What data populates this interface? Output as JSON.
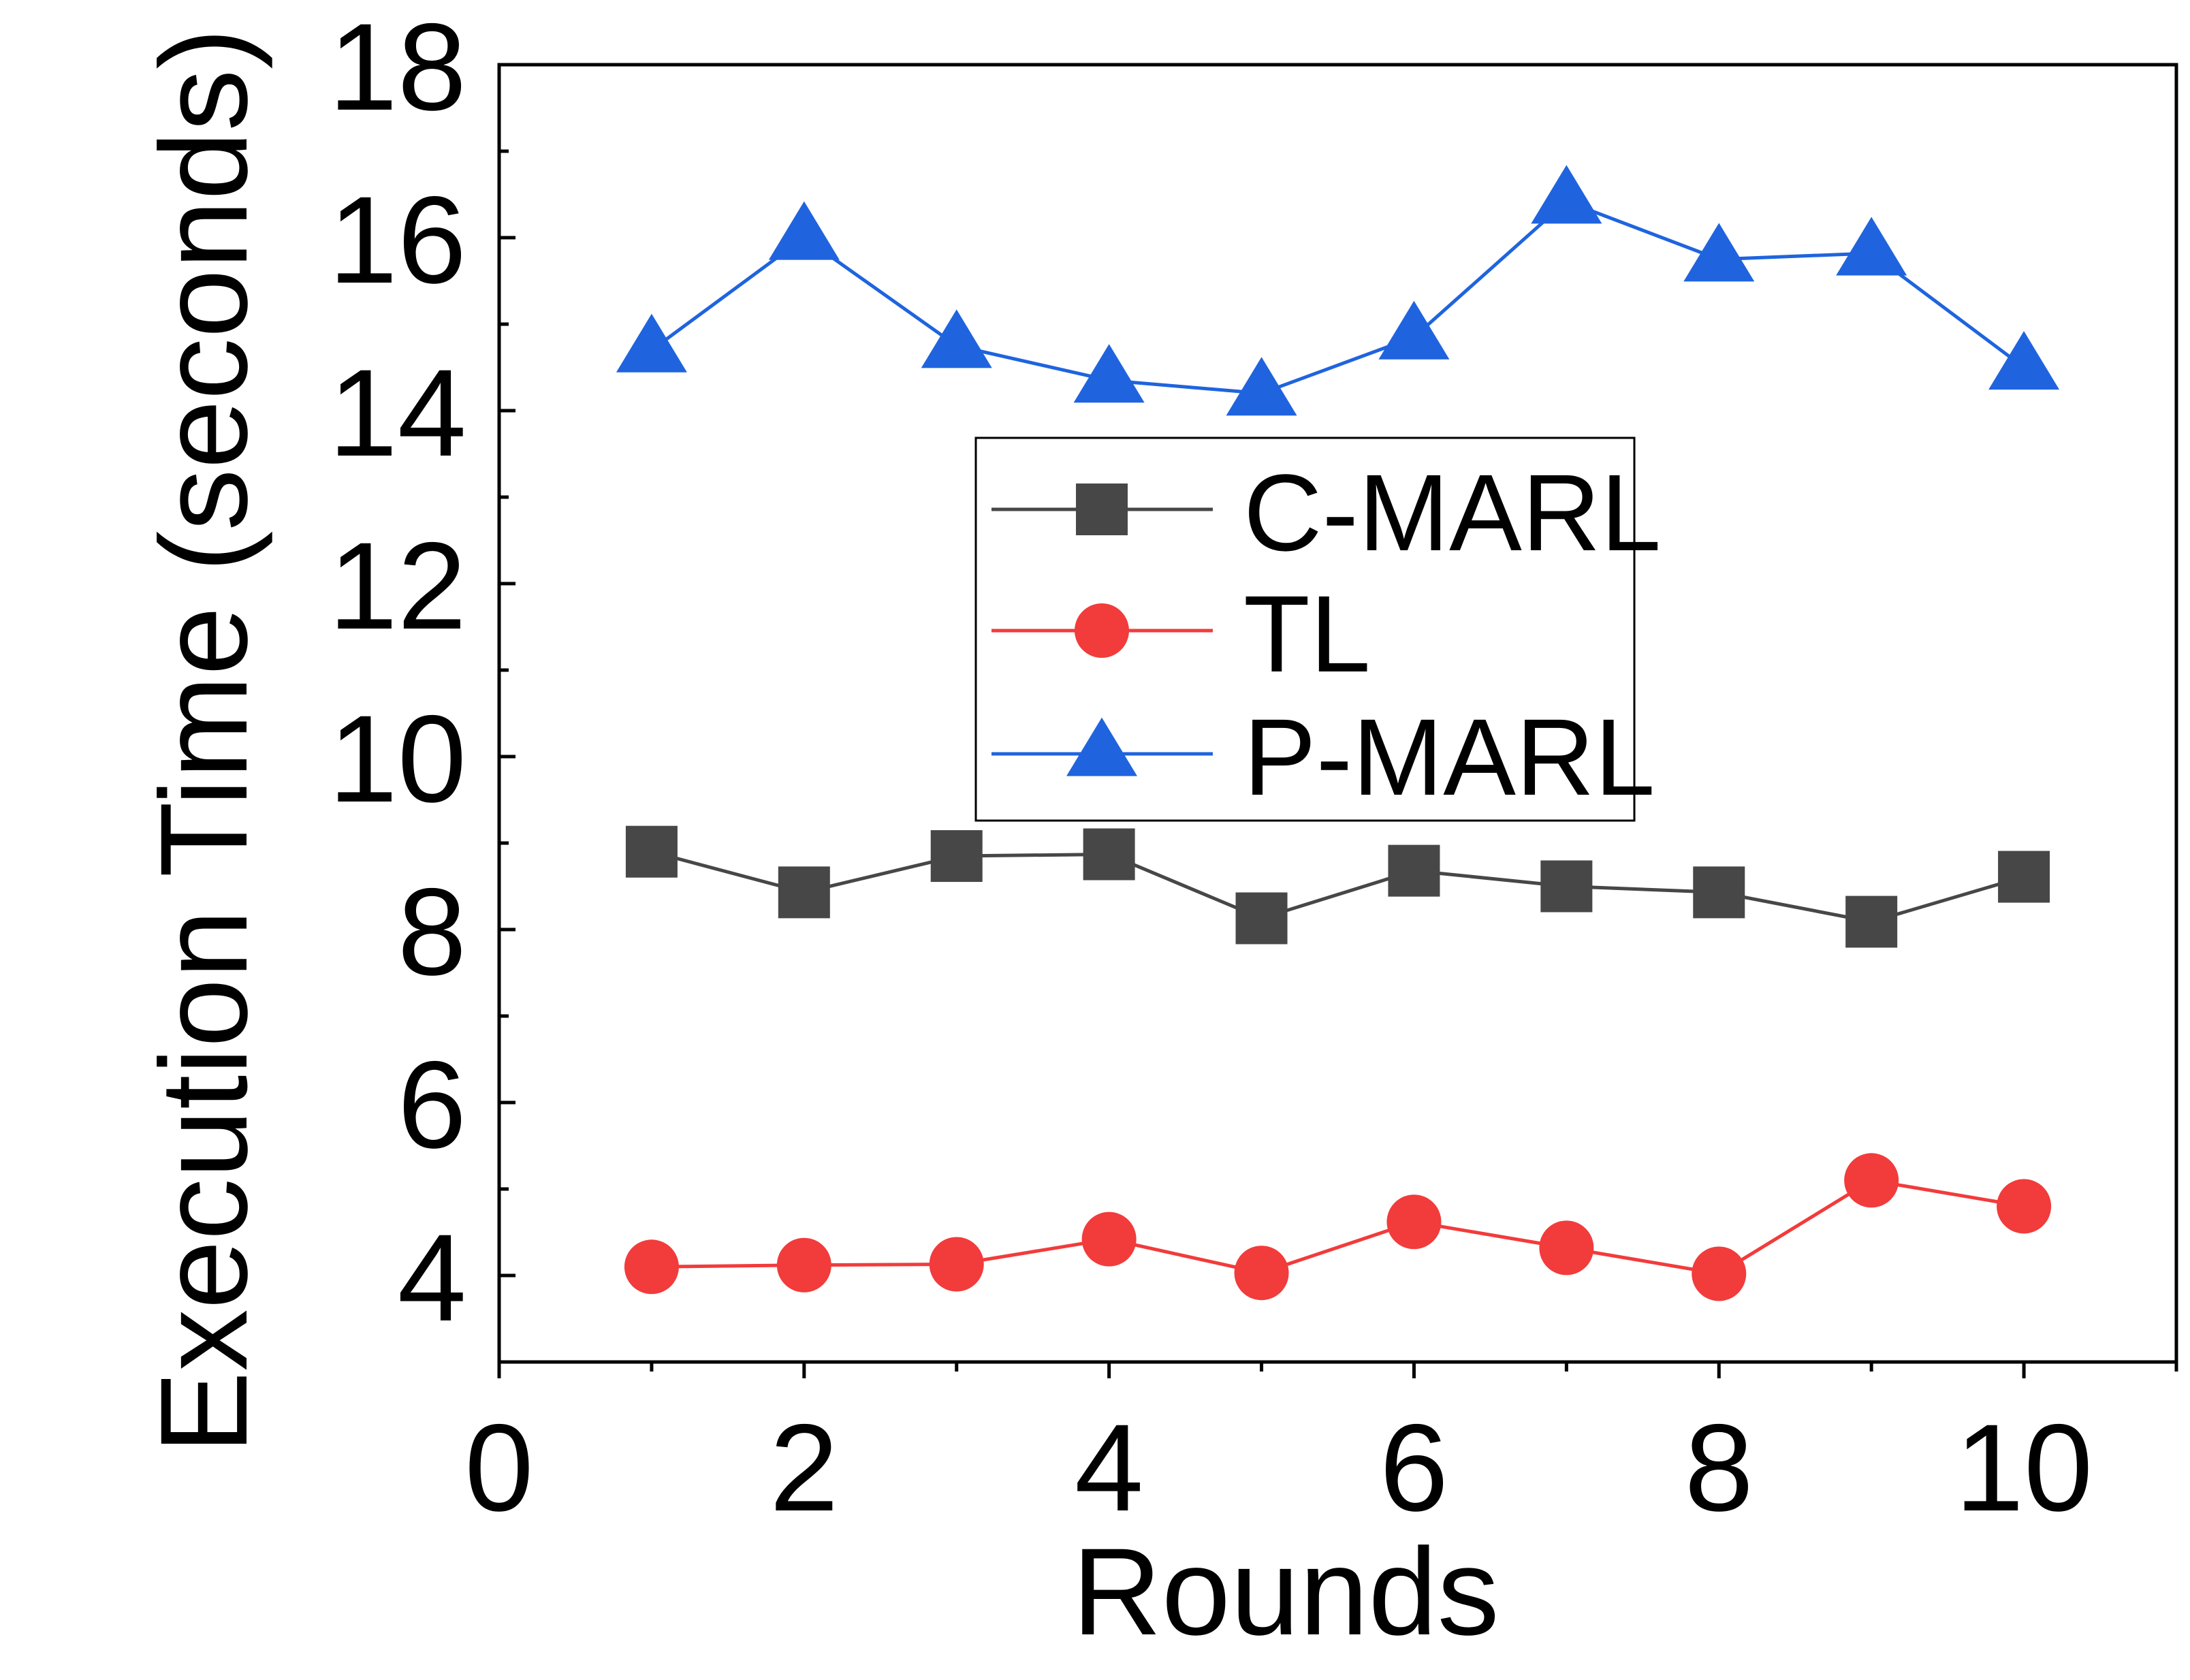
{
  "chart_data": {
    "type": "line",
    "title": "",
    "xlabel": "Rounds",
    "ylabel": "Execution Time (seconds)",
    "xlim": [
      0,
      11
    ],
    "ylim": [
      3,
      18
    ],
    "xticks": [
      0,
      2,
      4,
      6,
      8,
      10
    ],
    "yticks": [
      4,
      6,
      8,
      10,
      12,
      14,
      16,
      18
    ],
    "x": [
      1,
      2,
      3,
      4,
      5,
      6,
      7,
      8,
      9,
      10
    ],
    "grid": false,
    "legend_position": "center",
    "series": [
      {
        "name": "C-MARL",
        "color": "#474747",
        "marker": "square",
        "values": [
          8.9,
          8.43,
          8.85,
          8.87,
          8.13,
          8.68,
          8.5,
          8.43,
          8.09,
          8.61
        ]
      },
      {
        "name": "TL",
        "color": "#f23b3b",
        "marker": "circle",
        "values": [
          4.1,
          4.12,
          4.13,
          4.42,
          4.03,
          4.62,
          4.32,
          4.02,
          5.1,
          4.8
        ]
      },
      {
        "name": "P-MARL",
        "color": "#1f64de",
        "marker": "triangle",
        "values": [
          14.7,
          16.0,
          14.75,
          14.35,
          14.2,
          14.85,
          16.42,
          15.75,
          15.82,
          14.5
        ]
      }
    ]
  }
}
